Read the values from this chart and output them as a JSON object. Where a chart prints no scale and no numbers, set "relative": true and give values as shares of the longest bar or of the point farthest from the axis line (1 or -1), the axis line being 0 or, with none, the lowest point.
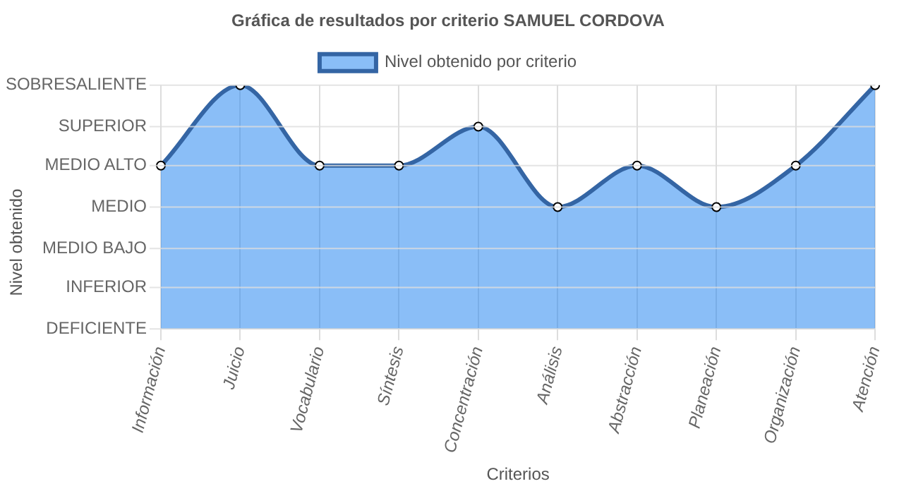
{
  "chart_data": {
    "type": "area",
    "title": "Gráfica de resultados por criterio SAMUEL CORDOVA",
    "xlabel": "Criterios",
    "annotations": [
      "Nivel obtenido"
    ],
    "categories": [
      "Información",
      "Juicio",
      "Vocabulario",
      "Síntesis",
      "Concentración",
      "Análisis",
      "Abstracción",
      "Planeación",
      "Organización",
      "Atención"
    ],
    "series": [
      {
        "name": "Nivel obtenido por criterio",
        "color": "#3465a4",
        "values": [
          0.67,
          1,
          0.67,
          0.67,
          0.83,
          0.5,
          0.67,
          0.5,
          0.67,
          1
        ]
      }
    ],
    "relative": true,
    "ref_lines": [
      {
        "axis": "y",
        "value": 0,
        "label": "DEFICIENTE",
        "color": "#dddddd"
      },
      {
        "axis": "y",
        "value": 0.17,
        "label": "INFERIOR",
        "color": "#dddddd"
      },
      {
        "axis": "y",
        "value": 0.33,
        "label": "MEDIO BAJO",
        "color": "#dddddd"
      },
      {
        "axis": "y",
        "value": 0.5,
        "label": "MEDIO",
        "color": "#dddddd"
      },
      {
        "axis": "y",
        "value": 0.67,
        "label": "MEDIO ALTO",
        "color": "#dddddd"
      },
      {
        "axis": "y",
        "value": 0.83,
        "label": "SUPERIOR",
        "color": "#dddddd"
      },
      {
        "axis": "y",
        "value": 1,
        "label": "SOBRESALIENTE",
        "color": "#dddddd"
      }
    ],
    "grid": "x",
    "legend": "top",
    "marker": "circle"
  }
}
